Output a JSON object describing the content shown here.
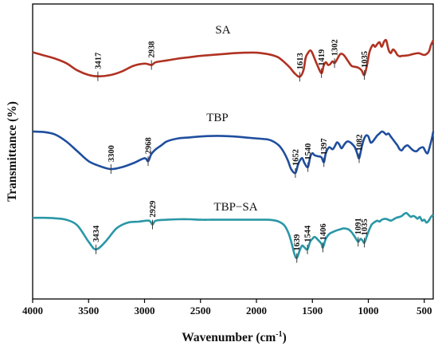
{
  "chart_data": {
    "type": "line",
    "xlabel": "Wavenumber (cm",
    "xlabel_sup": "-1",
    "xlabel_close": ")",
    "ylabel": "Transmittance (%)",
    "xlim": [
      4000,
      420
    ],
    "x_ticks": [
      4000,
      3500,
      3000,
      2500,
      2000,
      1500,
      1000,
      500
    ],
    "grid": false,
    "y_axis_ticks": false,
    "series": [
      {
        "name": "SA",
        "color": "#B03222",
        "points": [
          [
            4000,
            0.36
          ],
          [
            3900,
            0.43
          ],
          [
            3800,
            0.5
          ],
          [
            3700,
            0.6
          ],
          [
            3600,
            0.76
          ],
          [
            3500,
            0.86
          ],
          [
            3417,
            0.89
          ],
          [
            3300,
            0.86
          ],
          [
            3200,
            0.78
          ],
          [
            3100,
            0.66
          ],
          [
            3000,
            0.61
          ],
          [
            2938,
            0.64
          ],
          [
            2900,
            0.58
          ],
          [
            2800,
            0.54
          ],
          [
            2700,
            0.5
          ],
          [
            2600,
            0.47
          ],
          [
            2500,
            0.44
          ],
          [
            2400,
            0.42
          ],
          [
            2300,
            0.4
          ],
          [
            2200,
            0.38
          ],
          [
            2100,
            0.37
          ],
          [
            2000,
            0.37
          ],
          [
            1900,
            0.4
          ],
          [
            1850,
            0.43
          ],
          [
            1800,
            0.48
          ],
          [
            1750,
            0.58
          ],
          [
            1700,
            0.7
          ],
          [
            1660,
            0.82
          ],
          [
            1613,
            0.9
          ],
          [
            1580,
            0.76
          ],
          [
            1560,
            0.48
          ],
          [
            1540,
            0.38
          ],
          [
            1520,
            0.32
          ],
          [
            1500,
            0.38
          ],
          [
            1460,
            0.62
          ],
          [
            1419,
            0.82
          ],
          [
            1400,
            0.66
          ],
          [
            1380,
            0.58
          ],
          [
            1360,
            0.64
          ],
          [
            1340,
            0.62
          ],
          [
            1320,
            0.56
          ],
          [
            1302,
            0.6
          ],
          [
            1280,
            0.52
          ],
          [
            1250,
            0.4
          ],
          [
            1220,
            0.42
          ],
          [
            1180,
            0.56
          ],
          [
            1150,
            0.66
          ],
          [
            1120,
            0.68
          ],
          [
            1090,
            0.7
          ],
          [
            1060,
            0.76
          ],
          [
            1035,
            0.86
          ],
          [
            1010,
            0.62
          ],
          [
            990,
            0.36
          ],
          [
            960,
            0.2
          ],
          [
            940,
            0.24
          ],
          [
            920,
            0.18
          ],
          [
            900,
            0.14
          ],
          [
            880,
            0.24
          ],
          [
            860,
            0.13
          ],
          [
            840,
            0.1
          ],
          [
            820,
            0.3
          ],
          [
            800,
            0.38
          ],
          [
            780,
            0.3
          ],
          [
            760,
            0.34
          ],
          [
            740,
            0.42
          ],
          [
            720,
            0.45
          ],
          [
            700,
            0.44
          ],
          [
            650,
            0.43
          ],
          [
            600,
            0.4
          ],
          [
            550,
            0.38
          ],
          [
            500,
            0.42
          ],
          [
            460,
            0.35
          ],
          [
            440,
            0.2
          ],
          [
            420,
            0.1
          ]
        ],
        "peaks": [
          {
            "x": 3417,
            "label": "3417"
          },
          {
            "x": 2938,
            "label": "2938"
          },
          {
            "x": 1613,
            "label": "1613"
          },
          {
            "x": 1419,
            "label": "1419"
          },
          {
            "x": 1302,
            "label": "1302"
          },
          {
            "x": 1035,
            "label": "1035"
          }
        ]
      },
      {
        "name": "TBP",
        "color": "#1F4E9E",
        "points": [
          [
            4000,
            0.08
          ],
          [
            3900,
            0.09
          ],
          [
            3800,
            0.14
          ],
          [
            3700,
            0.28
          ],
          [
            3600,
            0.48
          ],
          [
            3500,
            0.68
          ],
          [
            3400,
            0.78
          ],
          [
            3300,
            0.84
          ],
          [
            3200,
            0.8
          ],
          [
            3100,
            0.72
          ],
          [
            3000,
            0.62
          ],
          [
            2968,
            0.68
          ],
          [
            2940,
            0.54
          ],
          [
            2900,
            0.44
          ],
          [
            2850,
            0.36
          ],
          [
            2800,
            0.28
          ],
          [
            2700,
            0.22
          ],
          [
            2600,
            0.2
          ],
          [
            2500,
            0.18
          ],
          [
            2400,
            0.17
          ],
          [
            2300,
            0.17
          ],
          [
            2200,
            0.18
          ],
          [
            2100,
            0.2
          ],
          [
            2000,
            0.22
          ],
          [
            1900,
            0.24
          ],
          [
            1850,
            0.28
          ],
          [
            1800,
            0.36
          ],
          [
            1760,
            0.48
          ],
          [
            1720,
            0.66
          ],
          [
            1690,
            0.84
          ],
          [
            1652,
            0.92
          ],
          [
            1630,
            0.76
          ],
          [
            1610,
            0.66
          ],
          [
            1590,
            0.62
          ],
          [
            1570,
            0.72
          ],
          [
            1540,
            0.8
          ],
          [
            1520,
            0.6
          ],
          [
            1500,
            0.52
          ],
          [
            1480,
            0.56
          ],
          [
            1450,
            0.58
          ],
          [
            1420,
            0.6
          ],
          [
            1397,
            0.7
          ],
          [
            1380,
            0.52
          ],
          [
            1350,
            0.4
          ],
          [
            1320,
            0.44
          ],
          [
            1300,
            0.38
          ],
          [
            1280,
            0.3
          ],
          [
            1260,
            0.34
          ],
          [
            1240,
            0.42
          ],
          [
            1220,
            0.36
          ],
          [
            1200,
            0.3
          ],
          [
            1180,
            0.28
          ],
          [
            1150,
            0.32
          ],
          [
            1120,
            0.4
          ],
          [
            1100,
            0.52
          ],
          [
            1082,
            0.62
          ],
          [
            1060,
            0.4
          ],
          [
            1040,
            0.24
          ],
          [
            1020,
            0.16
          ],
          [
            1000,
            0.18
          ],
          [
            980,
            0.3
          ],
          [
            960,
            0.28
          ],
          [
            940,
            0.22
          ],
          [
            920,
            0.16
          ],
          [
            900,
            0.12
          ],
          [
            880,
            0.08
          ],
          [
            860,
            0.1
          ],
          [
            840,
            0.14
          ],
          [
            820,
            0.12
          ],
          [
            800,
            0.18
          ],
          [
            780,
            0.24
          ],
          [
            760,
            0.3
          ],
          [
            740,
            0.36
          ],
          [
            720,
            0.44
          ],
          [
            700,
            0.46
          ],
          [
            680,
            0.4
          ],
          [
            650,
            0.36
          ],
          [
            620,
            0.42
          ],
          [
            600,
            0.46
          ],
          [
            570,
            0.48
          ],
          [
            540,
            0.42
          ],
          [
            510,
            0.4
          ],
          [
            490,
            0.48
          ],
          [
            470,
            0.52
          ],
          [
            450,
            0.38
          ],
          [
            430,
            0.2
          ],
          [
            420,
            0.08
          ]
        ],
        "peaks": [
          {
            "x": 3300,
            "label": "3300"
          },
          {
            "x": 2968,
            "label": "2968"
          },
          {
            "x": 1652,
            "label": "1652"
          },
          {
            "x": 1540,
            "label": "1540"
          },
          {
            "x": 1397,
            "label": "1397"
          },
          {
            "x": 1082,
            "label": "1082"
          }
        ]
      },
      {
        "name": "TBP−SA",
        "color": "#2A97A6",
        "points": [
          [
            4000,
            0.12
          ],
          [
            3900,
            0.12
          ],
          [
            3800,
            0.13
          ],
          [
            3700,
            0.16
          ],
          [
            3600,
            0.28
          ],
          [
            3500,
            0.62
          ],
          [
            3434,
            0.78
          ],
          [
            3350,
            0.62
          ],
          [
            3250,
            0.34
          ],
          [
            3150,
            0.22
          ],
          [
            3050,
            0.2
          ],
          [
            2960,
            0.18
          ],
          [
            2929,
            0.26
          ],
          [
            2900,
            0.18
          ],
          [
            2800,
            0.16
          ],
          [
            2700,
            0.15
          ],
          [
            2600,
            0.15
          ],
          [
            2500,
            0.16
          ],
          [
            2400,
            0.16
          ],
          [
            2300,
            0.16
          ],
          [
            2200,
            0.16
          ],
          [
            2100,
            0.16
          ],
          [
            2000,
            0.16
          ],
          [
            1900,
            0.16
          ],
          [
            1850,
            0.17
          ],
          [
            1800,
            0.2
          ],
          [
            1750,
            0.28
          ],
          [
            1710,
            0.46
          ],
          [
            1680,
            0.7
          ],
          [
            1660,
            0.88
          ],
          [
            1639,
            0.96
          ],
          [
            1610,
            0.78
          ],
          [
            1590,
            0.7
          ],
          [
            1570,
            0.74
          ],
          [
            1544,
            0.78
          ],
          [
            1520,
            0.62
          ],
          [
            1500,
            0.56
          ],
          [
            1480,
            0.52
          ],
          [
            1450,
            0.58
          ],
          [
            1420,
            0.66
          ],
          [
            1406,
            0.74
          ],
          [
            1380,
            0.56
          ],
          [
            1350,
            0.46
          ],
          [
            1320,
            0.42
          ],
          [
            1280,
            0.38
          ],
          [
            1250,
            0.36
          ],
          [
            1220,
            0.34
          ],
          [
            1180,
            0.36
          ],
          [
            1150,
            0.42
          ],
          [
            1120,
            0.52
          ],
          [
            1091,
            0.62
          ],
          [
            1070,
            0.56
          ],
          [
            1050,
            0.6
          ],
          [
            1035,
            0.64
          ],
          [
            1010,
            0.48
          ],
          [
            990,
            0.36
          ],
          [
            970,
            0.26
          ],
          [
            950,
            0.22
          ],
          [
            920,
            0.18
          ],
          [
            900,
            0.2
          ],
          [
            880,
            0.16
          ],
          [
            850,
            0.14
          ],
          [
            820,
            0.16
          ],
          [
            800,
            0.18
          ],
          [
            780,
            0.16
          ],
          [
            750,
            0.12
          ],
          [
            720,
            0.1
          ],
          [
            700,
            0.08
          ],
          [
            680,
            0.04
          ],
          [
            660,
            0.02
          ],
          [
            640,
            0.06
          ],
          [
            620,
            0.1
          ],
          [
            600,
            0.08
          ],
          [
            580,
            0.1
          ],
          [
            560,
            0.14
          ],
          [
            540,
            0.1
          ],
          [
            520,
            0.18
          ],
          [
            500,
            0.16
          ],
          [
            480,
            0.22
          ],
          [
            460,
            0.18
          ],
          [
            440,
            0.1
          ],
          [
            420,
            0.06
          ]
        ],
        "peaks": [
          {
            "x": 3434,
            "label": "3434"
          },
          {
            "x": 2929,
            "label": "2929"
          },
          {
            "x": 1639,
            "label": "1639"
          },
          {
            "x": 1544,
            "label": "1544"
          },
          {
            "x": 1406,
            "label": "1406"
          },
          {
            "x": 1091,
            "label": "1091"
          },
          {
            "x": 1035,
            "label": "1035"
          }
        ]
      }
    ]
  }
}
